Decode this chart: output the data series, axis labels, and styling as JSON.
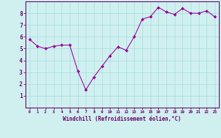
{
  "x": [
    0,
    1,
    2,
    3,
    4,
    5,
    6,
    7,
    8,
    9,
    10,
    11,
    12,
    13,
    14,
    15,
    16,
    17,
    18,
    19,
    20,
    21,
    22,
    23
  ],
  "y": [
    5.8,
    5.2,
    5.0,
    5.2,
    5.3,
    5.3,
    3.1,
    1.5,
    2.6,
    3.5,
    4.4,
    5.15,
    4.85,
    6.0,
    7.5,
    7.7,
    8.5,
    8.1,
    7.9,
    8.4,
    8.0,
    8.0,
    8.2,
    7.7
  ],
  "line_color": "#990099",
  "marker": "D",
  "marker_size": 2.0,
  "bg_color": "#d0f0f0",
  "grid_color": "#aadddd",
  "xlabel": "Windchill (Refroidissement éolien,°C)",
  "xlabel_color": "#660066",
  "tick_color": "#660066",
  "axis_color": "#660066",
  "ylim": [
    0,
    9
  ],
  "xlim": [
    -0.5,
    23.5
  ],
  "yticks": [
    1,
    2,
    3,
    4,
    5,
    6,
    7,
    8
  ],
  "xticks": [
    0,
    1,
    2,
    3,
    4,
    5,
    6,
    7,
    8,
    9,
    10,
    11,
    12,
    13,
    14,
    15,
    16,
    17,
    18,
    19,
    20,
    21,
    22,
    23
  ],
  "xtick_labels": [
    "0",
    "1",
    "2",
    "3",
    "4",
    "5",
    "6",
    "7",
    "8",
    "9",
    "10",
    "11",
    "12",
    "13",
    "14",
    "15",
    "16",
    "17",
    "18",
    "19",
    "20",
    "21",
    "22",
    "23"
  ]
}
